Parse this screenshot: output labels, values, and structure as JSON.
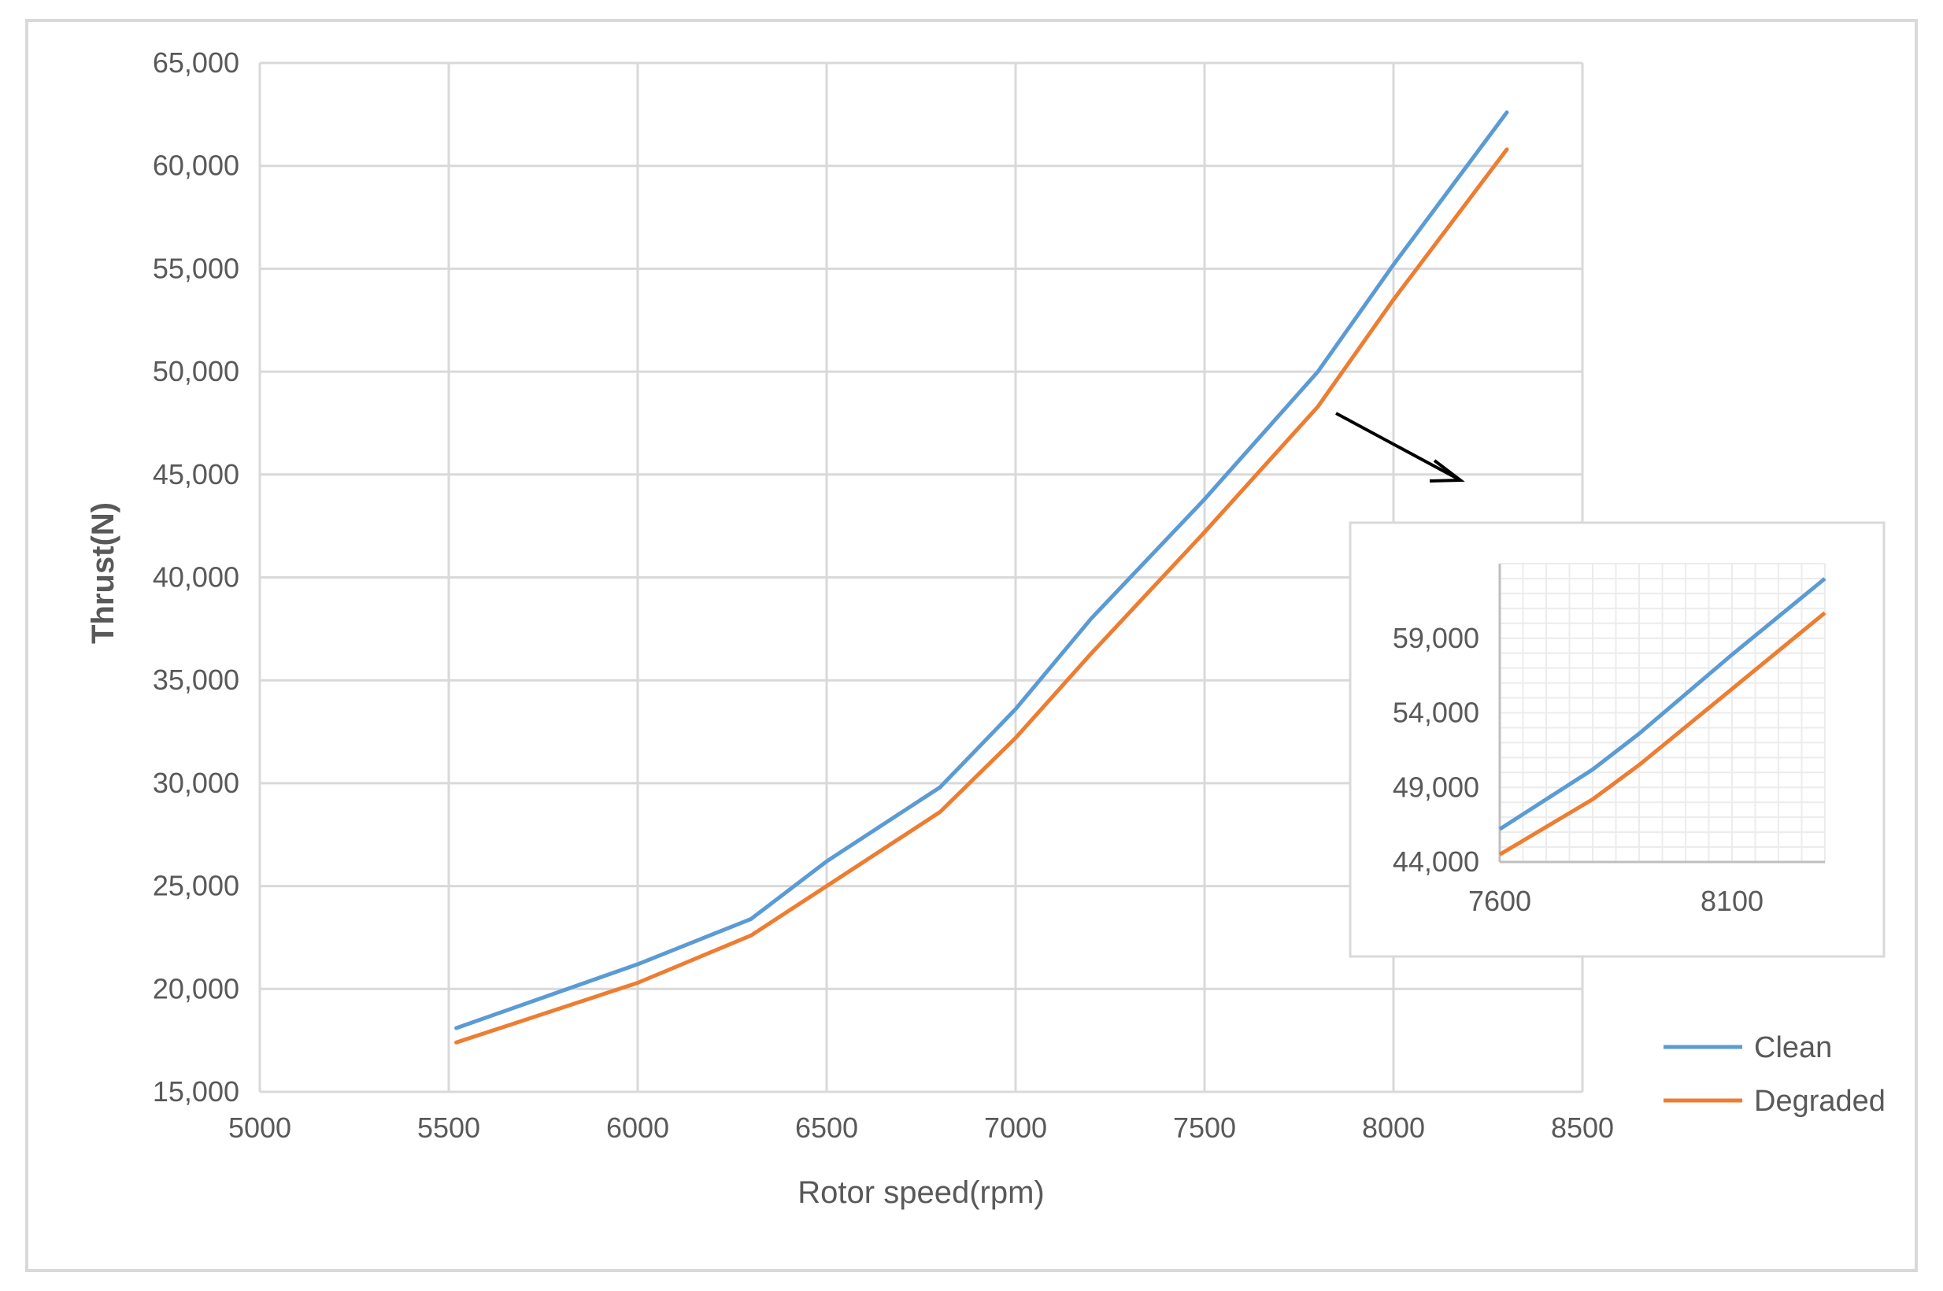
{
  "chart_data": {
    "type": "line",
    "title": "",
    "xlabel": "Rotor speed(rpm)",
    "ylabel": "Thrust(N)",
    "xlim": [
      5000,
      8500
    ],
    "ylim": [
      15000,
      65000
    ],
    "x_ticks": [
      "5000",
      "5500",
      "6000",
      "6500",
      "7000",
      "7500",
      "8000",
      "8500"
    ],
    "y_ticks": [
      "15,000",
      "20,000",
      "25,000",
      "30,000",
      "35,000",
      "40,000",
      "45,000",
      "50,000",
      "55,000",
      "60,000",
      "65,000"
    ],
    "grid": true,
    "legend_position": "bottom-right",
    "series": [
      {
        "name": "Clean",
        "color": "#5b9bd5",
        "points": [
          [
            5520,
            18100
          ],
          [
            6000,
            21200
          ],
          [
            6300,
            23400
          ],
          [
            6500,
            26200
          ],
          [
            6800,
            29800
          ],
          [
            7000,
            33600
          ],
          [
            7200,
            38000
          ],
          [
            7500,
            43800
          ],
          [
            7800,
            50000
          ],
          [
            8000,
            55200
          ],
          [
            8300,
            62600
          ]
        ]
      },
      {
        "name": "Degraded",
        "color": "#ed7d31",
        "points": [
          [
            5520,
            17400
          ],
          [
            6000,
            20300
          ],
          [
            6300,
            22600
          ],
          [
            6500,
            25000
          ],
          [
            6800,
            28600
          ],
          [
            7000,
            32200
          ],
          [
            7200,
            36300
          ],
          [
            7500,
            42200
          ],
          [
            7800,
            48300
          ],
          [
            8000,
            53500
          ],
          [
            8300,
            60800
          ]
        ]
      }
    ],
    "inset": {
      "xlim": [
        7600,
        8300
      ],
      "ylim": [
        44000,
        64000
      ],
      "x_ticks": [
        "7600",
        "8100"
      ],
      "y_ticks": [
        "44,000",
        "49,000",
        "54,000",
        "59,000"
      ],
      "series": [
        {
          "name": "Clean",
          "color": "#5b9bd5",
          "points": [
            [
              7600,
              46200
            ],
            [
              7800,
              50200
            ],
            [
              7900,
              52600
            ],
            [
              8100,
              57900
            ],
            [
              8300,
              63000
            ]
          ]
        },
        {
          "name": "Degraded",
          "color": "#ed7d31",
          "points": [
            [
              7600,
              44500
            ],
            [
              7800,
              48200
            ],
            [
              7900,
              50500
            ],
            [
              8100,
              55600
            ],
            [
              8300,
              60700
            ]
          ]
        }
      ]
    }
  }
}
